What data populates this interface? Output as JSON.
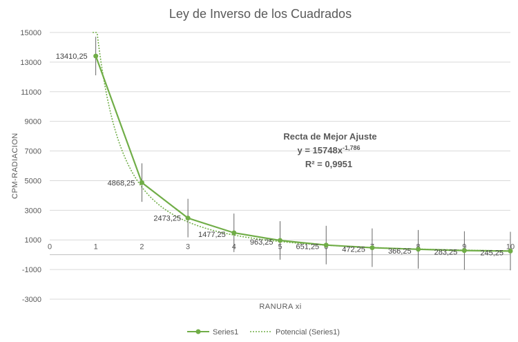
{
  "chart_data": {
    "type": "line",
    "title": "Ley de Inverso de los Cuadrados",
    "xlabel": "RANURA xi",
    "ylabel": "CPM-RADIACION",
    "xlim": [
      0,
      10
    ],
    "ylim": [
      -3000,
      15000
    ],
    "x_ticks": [
      "0",
      "1",
      "2",
      "3",
      "4",
      "5",
      "6",
      "7",
      "8",
      "9",
      "10"
    ],
    "y_ticks": [
      "15000",
      "13000",
      "11000",
      "9000",
      "7000",
      "5000",
      "3000",
      "1000",
      "-1000",
      "-3000"
    ],
    "grid": "horizontal",
    "legend_position": "bottom",
    "series": [
      {
        "name": "Series1",
        "color": "#70AD47",
        "x": [
          1,
          2,
          3,
          4,
          5,
          6,
          7,
          8,
          9,
          10
        ],
        "values": [
          13410.25,
          4868.25,
          2473.25,
          1477.25,
          963.25,
          651.25,
          472.25,
          366.25,
          283.25,
          245.25
        ],
        "data_labels": [
          "13410,25",
          "4868,25",
          "2473,25",
          "1477,25",
          "963,25",
          "651,25",
          "472,25",
          "366,25",
          "283,25",
          "245,25"
        ],
        "error_bar": 1300
      }
    ],
    "trendline": {
      "name": "Potencial (Series1)",
      "type": "power",
      "color": "#70AD47",
      "coefficient": 15748,
      "exponent": -1.786
    },
    "annotation": {
      "line1": "Recta de Mejor Ajuste",
      "line2_base": "y = 15748x",
      "line2_exp": "-1,786",
      "line3": "R² = 0,9951"
    }
  }
}
